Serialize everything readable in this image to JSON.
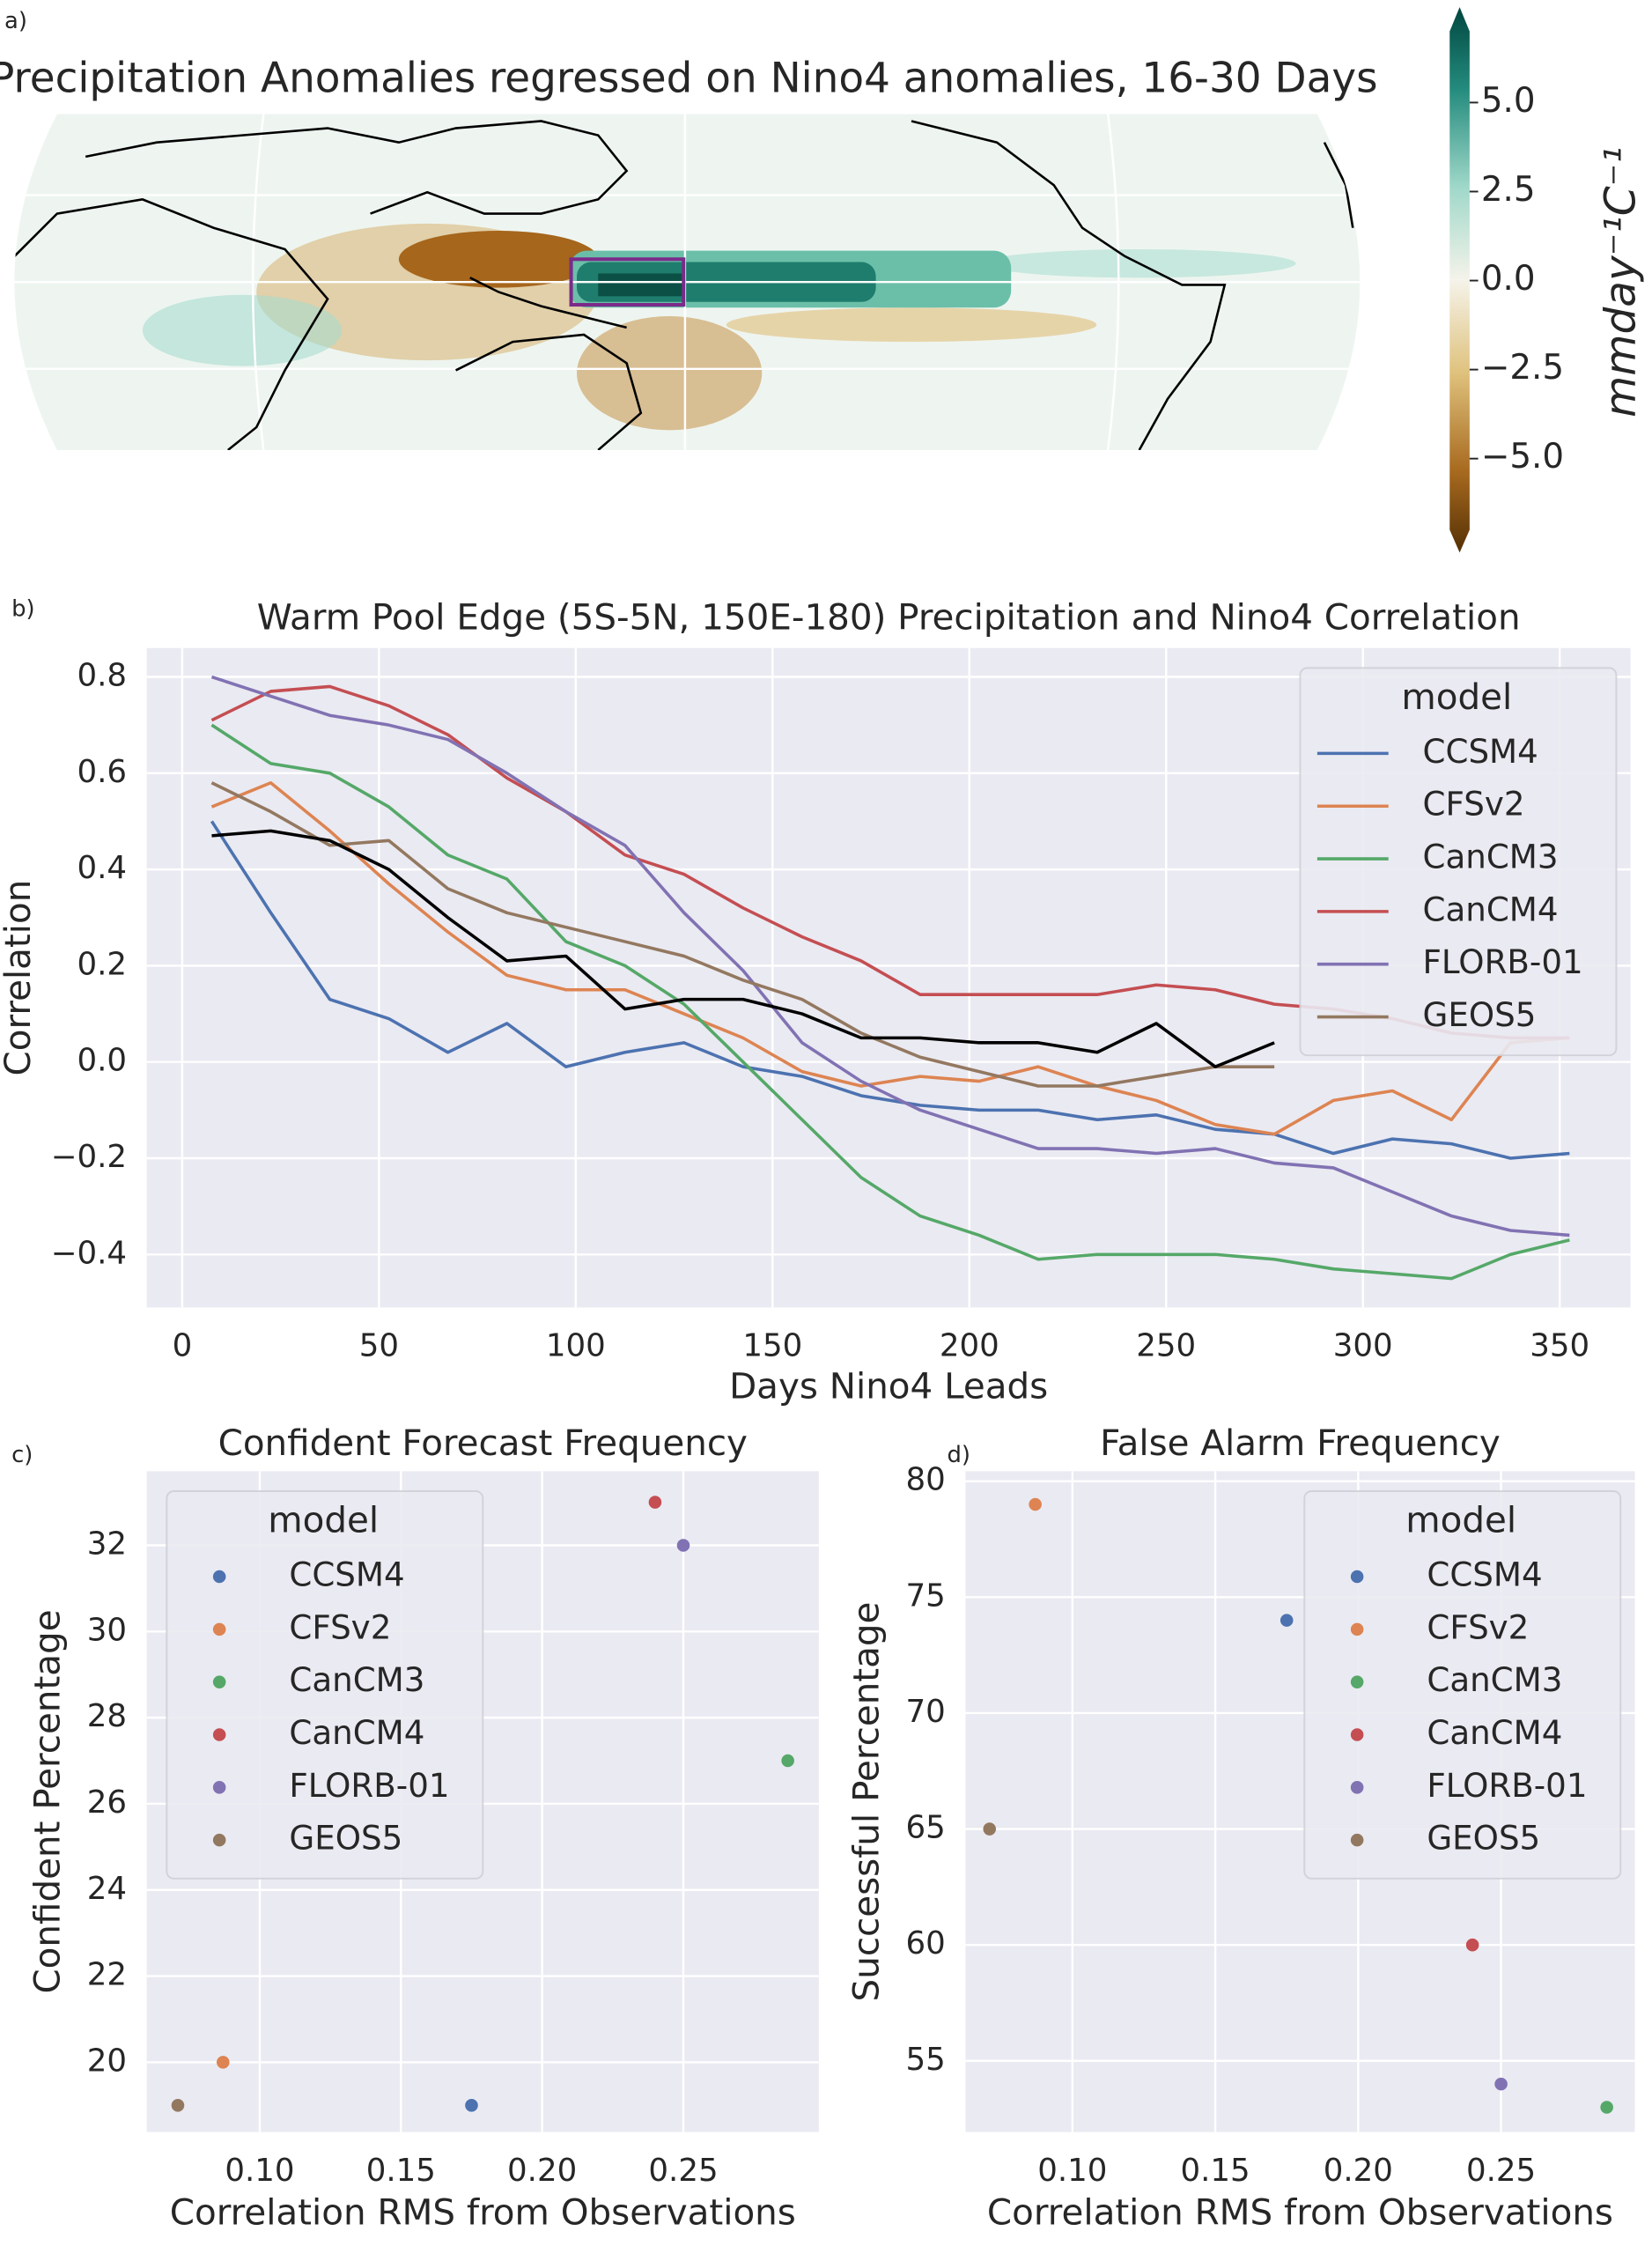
{
  "chart_data": [
    {
      "type": "map",
      "panel_label": "a)",
      "title": "Precipitation Anomalies regressed on Nino4 anomalies, 16-30 Days",
      "colorbar": {
        "label": "mmday⁻¹C⁻¹",
        "clim": [
          -7,
          7
        ],
        "ticks": [
          {
            "value": 5,
            "label": "5.0"
          },
          {
            "value": 2.5,
            "label": "2.5"
          },
          {
            "value": 0,
            "label": "0.0"
          },
          {
            "value": -2.5,
            "label": "−2.5"
          },
          {
            "value": -5,
            "label": "−5.0"
          }
        ]
      }
    },
    {
      "type": "line",
      "panel_label": "b)",
      "title": "Warm Pool Edge (5S-5N, 150E-180) Precipitation and Nino4 Correlation",
      "xlabel": "Days Nino4 Leads",
      "ylabel": "Correlation",
      "legend_title": "model",
      "legend": "upper right",
      "grid": true,
      "x": [
        7.5,
        22.5,
        37.5,
        52.5,
        67.5,
        82.5,
        97.5,
        112.5,
        127.5,
        142.5,
        157.5,
        172.5,
        187.5,
        202.5,
        217.5,
        232.5,
        247.5,
        262.5,
        277.5,
        292.5,
        307.5,
        322.5,
        337.5,
        352.5
      ],
      "series": [
        {
          "name": "CCSM4",
          "color": "#4c72b0",
          "values": [
            0.5,
            0.31,
            0.13,
            0.09,
            0.02,
            0.08,
            -0.01,
            0.02,
            0.04,
            -0.01,
            -0.03,
            -0.07,
            -0.09,
            -0.1,
            -0.1,
            -0.12,
            -0.11,
            -0.14,
            -0.15,
            -0.19,
            -0.16,
            -0.17,
            -0.2,
            -0.19
          ]
        },
        {
          "name": "CFSv2",
          "color": "#dd8452",
          "values": [
            0.53,
            0.58,
            0.48,
            0.37,
            0.27,
            0.18,
            0.15,
            0.15,
            0.1,
            0.05,
            -0.02,
            -0.05,
            -0.03,
            -0.04,
            -0.01,
            -0.05,
            -0.08,
            -0.13,
            -0.15,
            -0.08,
            -0.06,
            -0.12,
            0.04,
            0.05
          ]
        },
        {
          "name": "CanCM3",
          "color": "#55a868",
          "values": [
            0.7,
            0.62,
            0.6,
            0.53,
            0.43,
            0.38,
            0.25,
            0.2,
            0.12,
            0.0,
            -0.12,
            -0.24,
            -0.32,
            -0.36,
            -0.41,
            -0.4,
            -0.4,
            -0.4,
            -0.41,
            -0.43,
            -0.44,
            -0.45,
            -0.4,
            -0.37
          ]
        },
        {
          "name": "CanCM4",
          "color": "#c44e52",
          "values": [
            0.71,
            0.77,
            0.78,
            0.74,
            0.68,
            0.59,
            0.52,
            0.43,
            0.39,
            0.32,
            0.26,
            0.21,
            0.14,
            0.14,
            0.14,
            0.14,
            0.16,
            0.15,
            0.12,
            0.11,
            0.09,
            0.06,
            0.05,
            0.05
          ]
        },
        {
          "name": "FLORB-01",
          "color": "#8172b3",
          "values": [
            0.8,
            0.76,
            0.72,
            0.7,
            0.67,
            0.6,
            0.52,
            0.45,
            0.31,
            0.19,
            0.04,
            -0.04,
            -0.1,
            -0.14,
            -0.18,
            -0.18,
            -0.19,
            -0.18,
            -0.21,
            -0.22,
            -0.27,
            -0.32,
            -0.35,
            -0.36
          ]
        },
        {
          "name": "GEOS5",
          "color": "#937860",
          "values": [
            0.58,
            0.52,
            0.45,
            0.46,
            0.36,
            0.31,
            0.28,
            0.25,
            0.22,
            0.17,
            0.13,
            0.06,
            0.01,
            -0.02,
            -0.05,
            -0.05,
            -0.03,
            -0.01,
            -0.01,
            null,
            null,
            null,
            null,
            null
          ]
        },
        {
          "color": "#000000",
          "values": [
            0.47,
            0.48,
            0.46,
            0.4,
            0.3,
            0.21,
            0.22,
            0.11,
            0.13,
            0.13,
            0.1,
            0.05,
            0.05,
            0.04,
            0.04,
            0.02,
            0.08,
            -0.01,
            0.04,
            null,
            null,
            null,
            null,
            null
          ]
        }
      ],
      "xlim": [
        -9,
        368
      ],
      "ylim": [
        -0.51,
        0.86
      ],
      "xticks": [
        0,
        50,
        100,
        150,
        200,
        250,
        300,
        350
      ],
      "yticks": [
        {
          "value": -0.4,
          "label": "−0.4"
        },
        {
          "value": -0.2,
          "label": "−0.2"
        },
        {
          "value": 0,
          "label": "0.0"
        },
        {
          "value": 0.2,
          "label": "0.2"
        },
        {
          "value": 0.4,
          "label": "0.4"
        },
        {
          "value": 0.6,
          "label": "0.6"
        },
        {
          "value": 0.8,
          "label": "0.8"
        }
      ]
    },
    {
      "type": "scatter",
      "panel_label": "c)",
      "title": "Confident Forecast Frequency",
      "xlabel": "Correlation RMS from Observations",
      "ylabel": "Confident Percentage",
      "legend_title": "model",
      "legend": "upper left",
      "grid": true,
      "series": [
        {
          "name": "CCSM4",
          "color": "#4c72b0",
          "x": [
            0.175
          ],
          "values": [
            19
          ]
        },
        {
          "name": "CFSv2",
          "color": "#dd8452",
          "x": [
            0.087
          ],
          "values": [
            20
          ]
        },
        {
          "name": "CanCM3",
          "color": "#55a868",
          "x": [
            0.287
          ],
          "values": [
            27
          ]
        },
        {
          "name": "CanCM4",
          "color": "#c44e52",
          "x": [
            0.24
          ],
          "values": [
            33
          ]
        },
        {
          "name": "FLORB-01",
          "color": "#8172b3",
          "x": [
            0.25
          ],
          "values": [
            32
          ]
        },
        {
          "name": "GEOS5",
          "color": "#937860",
          "x": [
            0.071
          ],
          "values": [
            19
          ]
        }
      ],
      "xlim": [
        0.06,
        0.298
      ],
      "ylim": [
        18.38,
        33.72
      ],
      "xticks": [
        {
          "value": 0.1,
          "label": "0.10"
        },
        {
          "value": 0.15,
          "label": "0.15"
        },
        {
          "value": 0.2,
          "label": "0.20"
        },
        {
          "value": 0.25,
          "label": "0.25"
        }
      ],
      "yticks": [
        20,
        22,
        24,
        26,
        28,
        30,
        32
      ]
    },
    {
      "type": "scatter",
      "panel_label": "d)",
      "title": "False Alarm Frequency",
      "xlabel": "Correlation RMS from Observations",
      "ylabel": "Successful Percentage",
      "legend_title": "model",
      "legend": "upper right",
      "grid": true,
      "series": [
        {
          "name": "CCSM4",
          "color": "#4c72b0",
          "x": [
            0.175
          ],
          "values": [
            74
          ]
        },
        {
          "name": "CFSv2",
          "color": "#dd8452",
          "x": [
            0.087
          ],
          "values": [
            79
          ]
        },
        {
          "name": "CanCM3",
          "color": "#55a868",
          "x": [
            0.287
          ],
          "values": [
            53
          ]
        },
        {
          "name": "CanCM4",
          "color": "#c44e52",
          "x": [
            0.24
          ],
          "values": [
            60
          ]
        },
        {
          "name": "FLORB-01",
          "color": "#8172b3",
          "x": [
            0.25
          ],
          "values": [
            54
          ]
        },
        {
          "name": "GEOS5",
          "color": "#937860",
          "x": [
            0.071
          ],
          "values": [
            65
          ]
        }
      ],
      "xlim": [
        0.0626,
        0.2968
      ],
      "ylim": [
        51.93,
        80.43
      ],
      "xticks": [
        {
          "value": 0.1,
          "label": "0.10"
        },
        {
          "value": 0.15,
          "label": "0.15"
        },
        {
          "value": 0.2,
          "label": "0.20"
        },
        {
          "value": 0.25,
          "label": "0.25"
        }
      ],
      "yticks": [
        55,
        60,
        65,
        70,
        75,
        80
      ]
    }
  ]
}
